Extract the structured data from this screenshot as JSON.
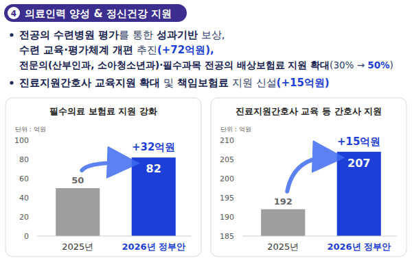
{
  "header": {
    "number": "4",
    "title": "의료인력 양성 & 정신건강 지원"
  },
  "bullets": [
    {
      "lines": [
        [
          {
            "text": "전공의 수련병원 평가",
            "style": "bold"
          },
          {
            "text": "를 통한 ",
            "style": "normal"
          },
          {
            "text": "성과기반",
            "style": "bold"
          },
          {
            "text": " 보상,",
            "style": "normal"
          }
        ],
        [
          {
            "text": "수련 교육·평가체계 개편",
            "style": "bold"
          },
          {
            "text": " 추진",
            "style": "normal"
          },
          {
            "text": "(+72억원),",
            "style": "blue"
          }
        ],
        [
          {
            "text": "전문의(산부인과, 소아청소년과)·필수과목 전공의 배상보험료 지원 확대",
            "style": "bold"
          },
          {
            "text": "(30% → ",
            "style": "normal"
          },
          {
            "text": "50%",
            "style": "blue"
          },
          {
            "text": ")",
            "style": "normal"
          }
        ]
      ]
    },
    {
      "lines": [
        [
          {
            "text": "진료지원간호사 교육지원 확대",
            "style": "bold"
          },
          {
            "text": " 및 ",
            "style": "normal"
          },
          {
            "text": "책임보험료",
            "style": "bold"
          },
          {
            "text": " 지원 신설",
            "style": "normal"
          },
          {
            "text": "(+15억원)",
            "style": "blue"
          }
        ]
      ]
    }
  ],
  "chart_data": [
    {
      "type": "bar",
      "title": "필수의료 보험료 지원 강화",
      "y_label": "단위 : 억원",
      "categories": [
        "2025년",
        "2026년 정부안"
      ],
      "values": [
        50,
        82
      ],
      "colors": [
        "#9e9e9e",
        "#1d3fd8"
      ],
      "ylim": [
        0,
        100
      ],
      "yticks": [
        0,
        20,
        40,
        60,
        80,
        100
      ],
      "grid": false,
      "data_labels": true,
      "annotations": [
        "+32억원"
      ]
    },
    {
      "type": "bar",
      "title": "진료지원간호사 교육 등 간호사 지원",
      "y_label": "단위 : 억원",
      "categories": [
        "2025년",
        "2026년 정부안"
      ],
      "values": [
        192,
        207
      ],
      "colors": [
        "#9e9e9e",
        "#1d3fd8"
      ],
      "ylim": [
        185,
        210
      ],
      "yticks": [
        185,
        190,
        195,
        200,
        205,
        210
      ],
      "grid": false,
      "data_labels": true,
      "annotations": [
        "+15억원"
      ]
    }
  ]
}
